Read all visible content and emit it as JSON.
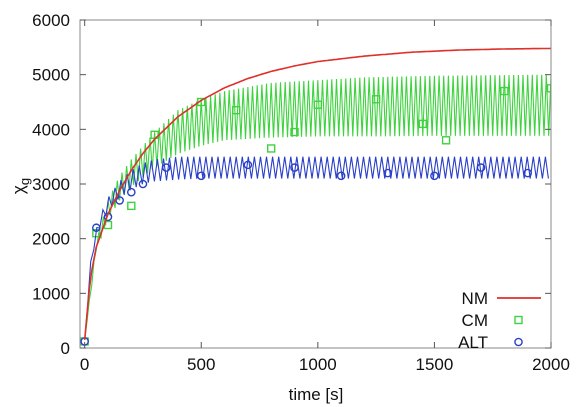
{
  "chart_data": {
    "type": "line",
    "xlabel": "time [s]",
    "ylabel": "χ",
    "ylabel_subscript": "g",
    "xlim": [
      -20,
      2000
    ],
    "ylim": [
      0,
      6000
    ],
    "x_ticks": [
      "0",
      "500",
      "1000",
      "1500",
      "2000"
    ],
    "y_ticks": [
      "0",
      "1000",
      "2000",
      "3000",
      "4000",
      "5000",
      "6000"
    ],
    "grid": false,
    "legend_position": "bottom-right",
    "series": [
      {
        "name": "NM",
        "style": "line",
        "color": "#e0302a",
        "x": [
          0,
          25,
          50,
          100,
          150,
          200,
          250,
          300,
          400,
          500,
          600,
          700,
          800,
          900,
          1000,
          1200,
          1400,
          1600,
          1800,
          2000
        ],
        "y": [
          150,
          1300,
          1850,
          2450,
          2880,
          3250,
          3560,
          3820,
          4230,
          4530,
          4760,
          4930,
          5060,
          5160,
          5240,
          5340,
          5410,
          5450,
          5470,
          5480
        ]
      },
      {
        "name": "CM",
        "style": "oscillating-with-square-markers",
        "color": "#3ed33e",
        "envelope_x": [
          0,
          50,
          100,
          150,
          200,
          300,
          400,
          500,
          600,
          800,
          1000,
          1200,
          1500,
          2000
        ],
        "upper": [
          150,
          1950,
          2700,
          3150,
          3450,
          3950,
          4350,
          4550,
          4700,
          4850,
          4900,
          4950,
          4980,
          5000
        ],
        "lower": [
          150,
          1800,
          2350,
          2700,
          2950,
          3300,
          3550,
          3700,
          3800,
          3850,
          3870,
          3870,
          3880,
          3880
        ],
        "period": 20,
        "marker_x": [
          0,
          50,
          100,
          200,
          300,
          500,
          650,
          800,
          900,
          1000,
          1250,
          1450,
          1550,
          1800,
          2000
        ],
        "marker_y": [
          120,
          2100,
          2250,
          2600,
          3900,
          4500,
          4350,
          3650,
          3950,
          4450,
          4550,
          4100,
          3800,
          4700,
          4750
        ]
      },
      {
        "name": "ALT",
        "style": "oscillating-with-circle-markers",
        "color": "#2a3fc8",
        "envelope_x": [
          0,
          30,
          60,
          100,
          150,
          200,
          250,
          300,
          400,
          500,
          700,
          1000,
          1500,
          2000
        ],
        "upper": [
          150,
          1800,
          2350,
          2750,
          3050,
          3250,
          3380,
          3450,
          3500,
          3500,
          3500,
          3500,
          3500,
          3500
        ],
        "lower": [
          150,
          1650,
          2150,
          2500,
          2750,
          2900,
          3000,
          3050,
          3080,
          3100,
          3100,
          3100,
          3100,
          3100
        ],
        "period": 26,
        "marker_x": [
          0,
          50,
          100,
          150,
          200,
          250,
          350,
          500,
          700,
          900,
          1100,
          1300,
          1500,
          1700,
          1900
        ],
        "marker_y": [
          120,
          2200,
          2400,
          2700,
          2850,
          3000,
          3300,
          3150,
          3350,
          3300,
          3150,
          3200,
          3150,
          3300,
          3200
        ]
      }
    ]
  }
}
